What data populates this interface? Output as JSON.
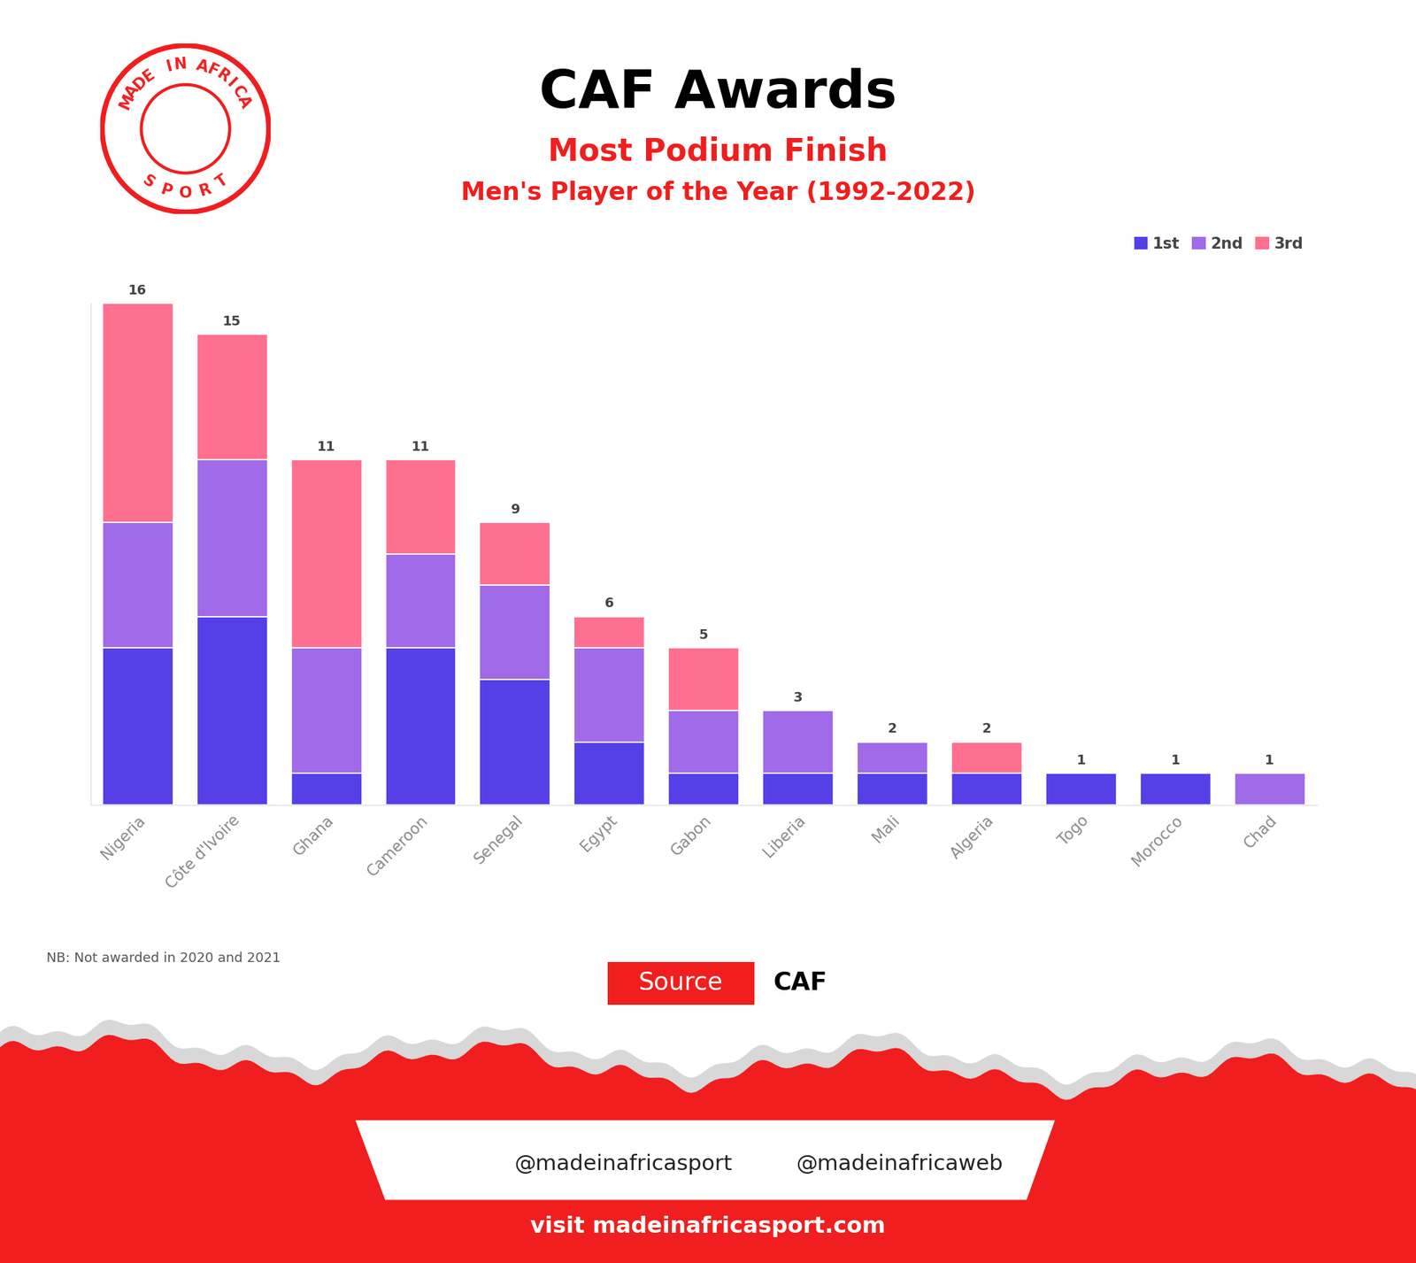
{
  "chart_data": {
    "type": "bar",
    "stacked": true,
    "data_labels": true,
    "title": "CAF Awards",
    "subtitle": "Most Podium Finish",
    "subtitle2": "Men's Player of the Year (1992-2022)",
    "categories": [
      "Nigeria",
      "Côte d'Ivoire",
      "Ghana",
      "Cameroon",
      "Senegal",
      "Egypt",
      "Gabon",
      "Liberia",
      "Mali",
      "Algeria",
      "Togo",
      "Morocco",
      "Chad"
    ],
    "series": [
      {
        "name": "1st",
        "color": "#5540e8",
        "values": [
          5,
          6,
          1,
          5,
          4,
          2,
          1,
          1,
          1,
          1,
          1,
          1,
          0
        ]
      },
      {
        "name": "2nd",
        "color": "#a06ae8",
        "values": [
          4,
          5,
          4,
          3,
          3,
          3,
          2,
          2,
          1,
          0,
          0,
          0,
          1
        ]
      },
      {
        "name": "3rd",
        "color": "#ff7090",
        "values": [
          7,
          4,
          6,
          3,
          2,
          1,
          2,
          0,
          0,
          1,
          0,
          0,
          0
        ]
      }
    ],
    "totals": [
      16,
      15,
      11,
      11,
      9,
      6,
      5,
      3,
      2,
      2,
      1,
      1,
      1
    ],
    "ylim": [
      0,
      16
    ],
    "yticks": [],
    "tick_labels": "x",
    "grid": false,
    "legend": "upper right"
  },
  "page": {
    "logo": [
      "MADE IN AFRICA",
      "SPORT"
    ],
    "note": "NB: Not awarded in 2020 and 2021",
    "source_label": "Source",
    "source": "CAF",
    "handle_1": "@madeinafricasport",
    "handle_2": "@madeinafricaweb",
    "website": "visit madeinafricasport.com"
  }
}
